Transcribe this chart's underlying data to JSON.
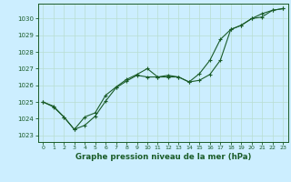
{
  "title": "Graphe pression niveau de la mer (hPa)",
  "bg_color": "#cceeff",
  "grid_color": "#b8ddd0",
  "line_color": "#1a5c28",
  "xlim": [
    -0.5,
    23.5
  ],
  "ylim": [
    1022.6,
    1030.9
  ],
  "yticks": [
    1023,
    1024,
    1025,
    1026,
    1027,
    1028,
    1029,
    1030
  ],
  "xticks": [
    0,
    1,
    2,
    3,
    4,
    5,
    6,
    7,
    8,
    9,
    10,
    11,
    12,
    13,
    14,
    15,
    16,
    17,
    18,
    19,
    20,
    21,
    22,
    23
  ],
  "series1_x": [
    0,
    1,
    2,
    3,
    4,
    5,
    6,
    7,
    8,
    9,
    10,
    11,
    12,
    13,
    14,
    15,
    16,
    17,
    18,
    19,
    20,
    21,
    22,
    23
  ],
  "series1_y": [
    1025.0,
    1024.75,
    1024.1,
    1023.35,
    1023.6,
    1024.15,
    1025.05,
    1025.85,
    1026.25,
    1026.6,
    1026.5,
    1026.5,
    1026.6,
    1026.5,
    1026.2,
    1026.7,
    1027.5,
    1028.75,
    1029.35,
    1029.6,
    1030.0,
    1030.3,
    1030.5,
    1030.6
  ],
  "series2_x": [
    0,
    1,
    2,
    3,
    4,
    5,
    6,
    7,
    8,
    9,
    10,
    11,
    12,
    13,
    14,
    15,
    16,
    17,
    18,
    19,
    20,
    21,
    22,
    23
  ],
  "series2_y": [
    1025.0,
    1024.7,
    1024.1,
    1023.35,
    1024.1,
    1024.35,
    1025.4,
    1025.9,
    1026.35,
    1026.65,
    1027.0,
    1026.5,
    1026.5,
    1026.5,
    1026.2,
    1026.3,
    1026.65,
    1027.5,
    1029.35,
    1029.6,
    1030.0,
    1030.1,
    1030.5,
    1030.6
  ]
}
